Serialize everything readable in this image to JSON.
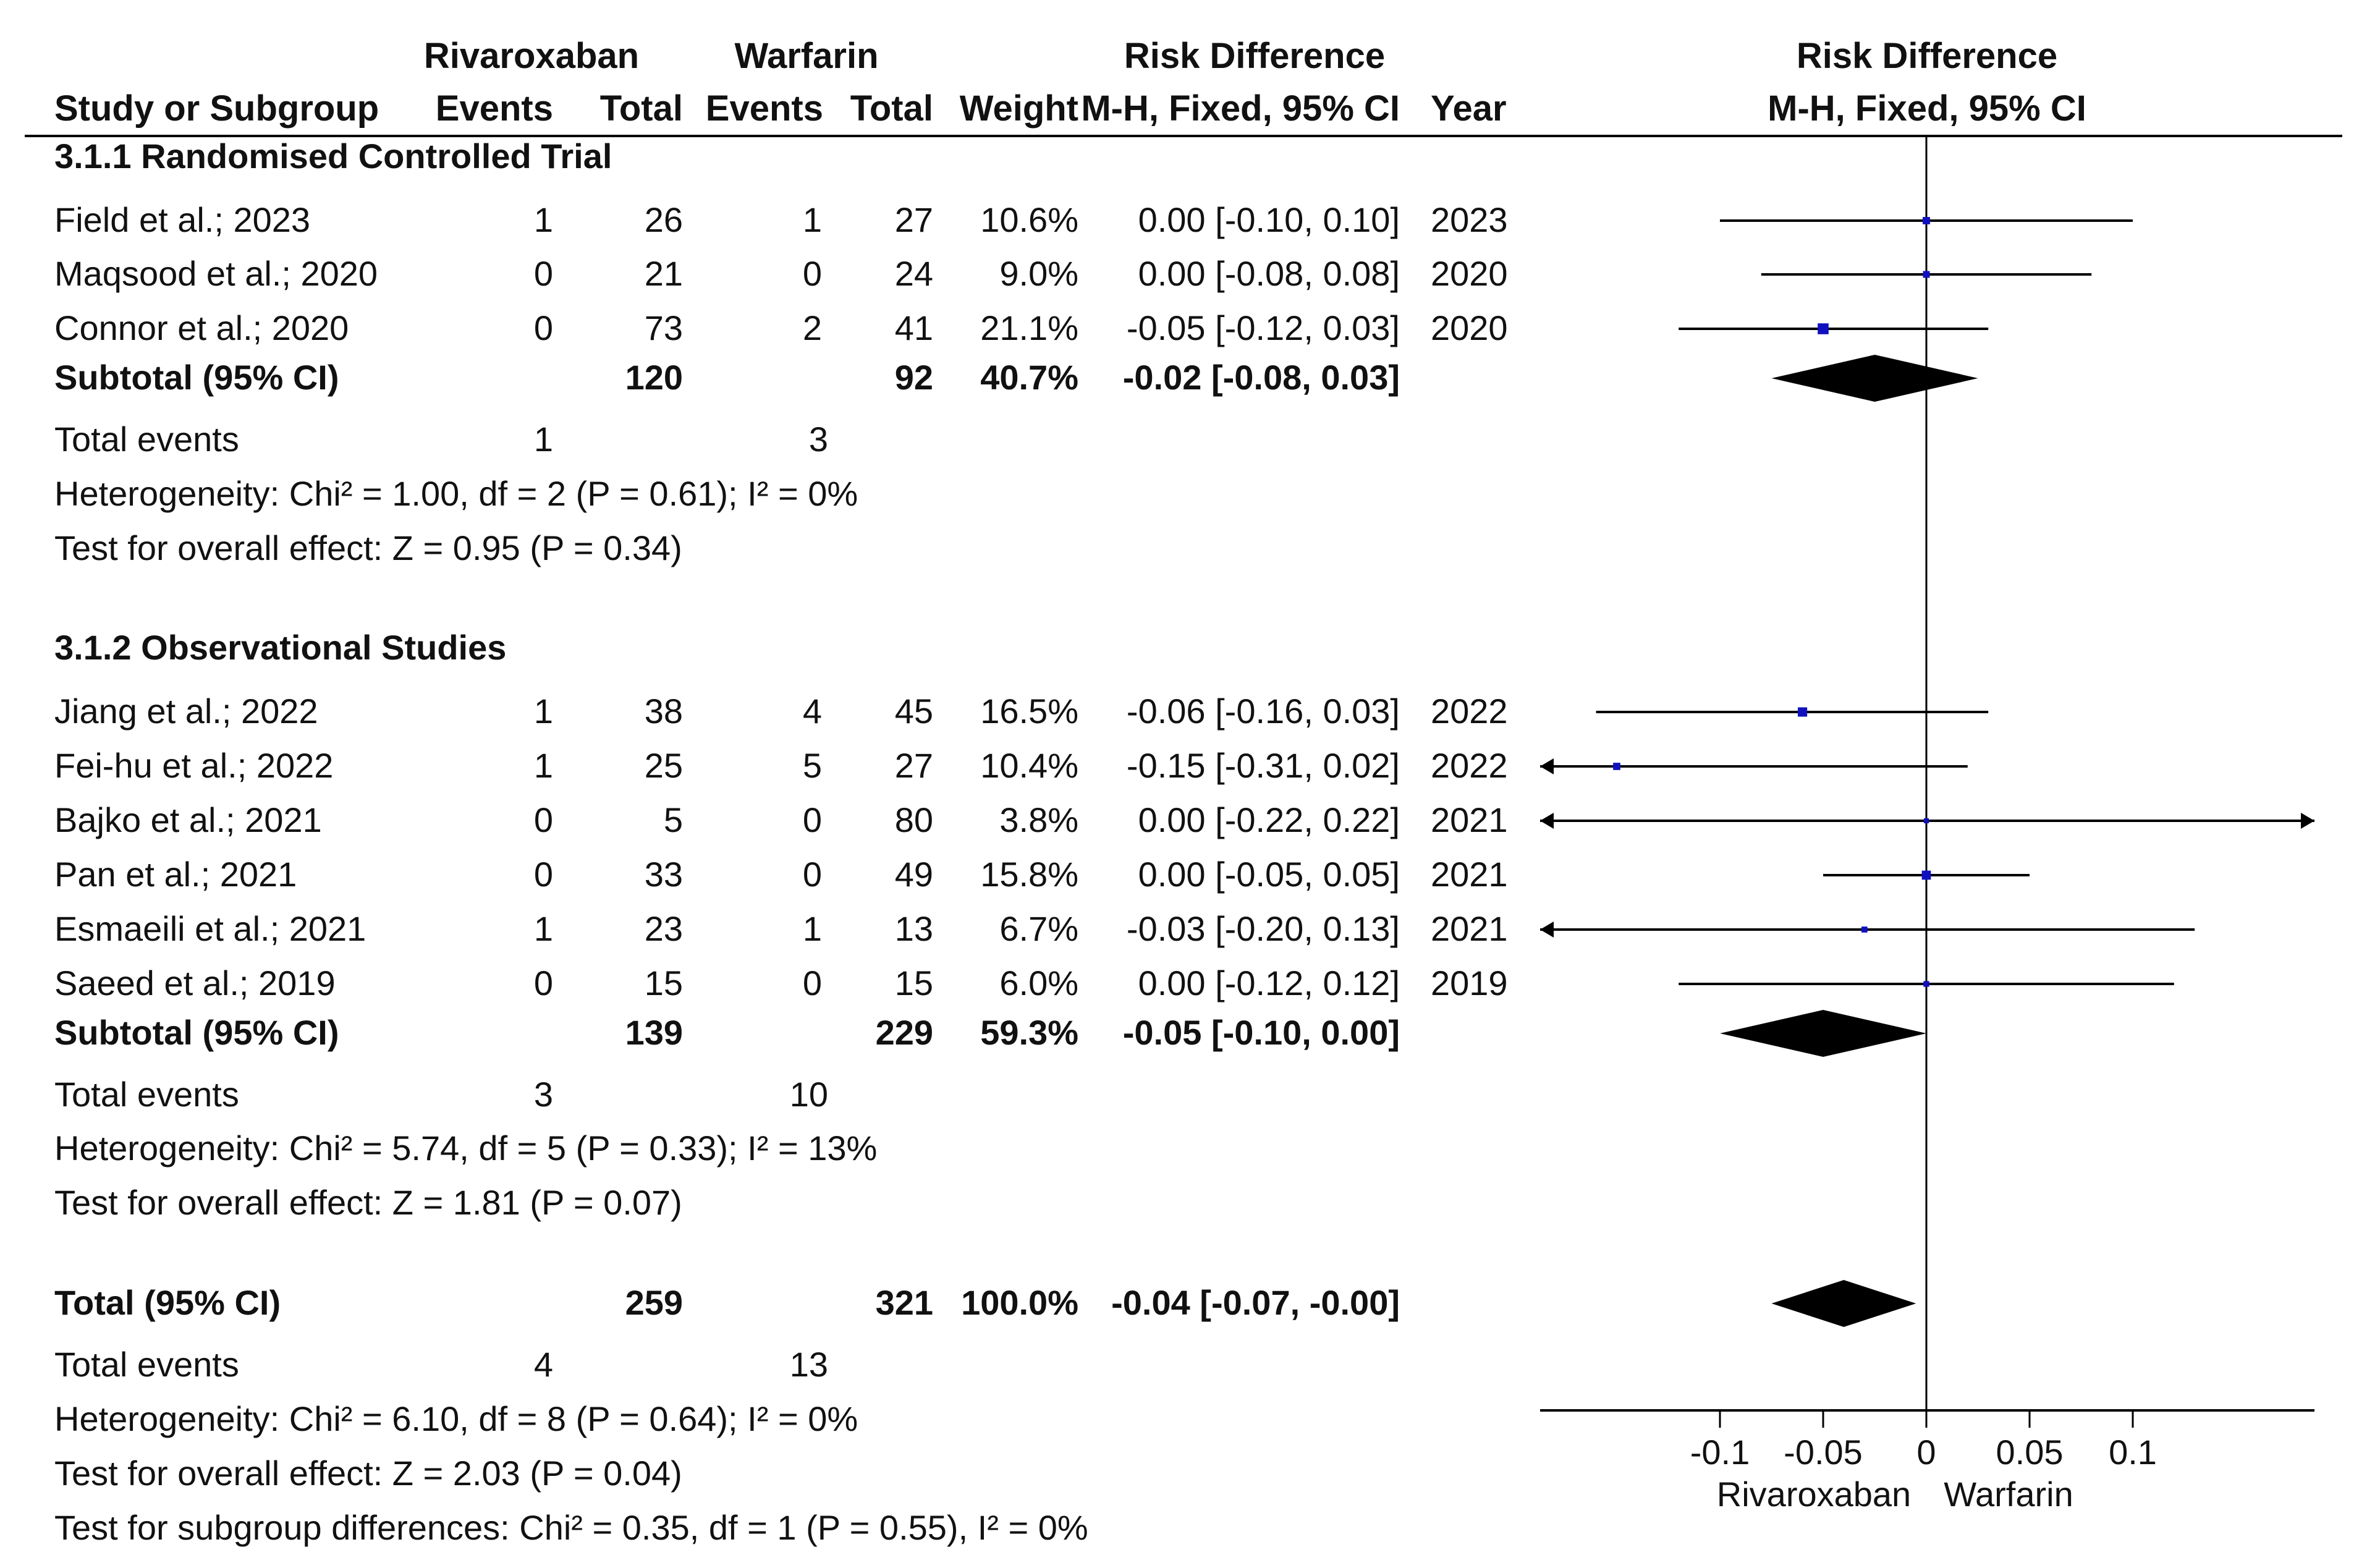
{
  "chart_data": {
    "type": "forest",
    "title": "Risk Difference",
    "headers": {
      "group1": "Rivaroxaban",
      "group2": "Warfarin",
      "effect_group": "Risk Difference",
      "study": "Study or Subgroup",
      "events": "Events",
      "total": "Total",
      "weight": "Weight",
      "effect_method": "M-H, Fixed, 95% CI",
      "year": "Year",
      "plot_title": "Risk Difference",
      "plot_method": "M-H, Fixed, 95% CI"
    },
    "subgroups": [
      {
        "title": "3.1.1 Randomised Controlled Trial",
        "studies": [
          {
            "name": "Field et al.; 2023",
            "e1": "1",
            "t1": "26",
            "e2": "1",
            "t2": "27",
            "weight": "10.6%",
            "ci_text": "0.00 [-0.10, 0.10]",
            "year": "2023",
            "rd": 0.0,
            "lo": -0.1,
            "hi": 0.1,
            "w": 10.6
          },
          {
            "name": "Maqsood et al.; 2020",
            "e1": "0",
            "t1": "21",
            "e2": "0",
            "t2": "24",
            "weight": "9.0%",
            "ci_text": "0.00 [-0.08, 0.08]",
            "year": "2020",
            "rd": 0.0,
            "lo": -0.08,
            "hi": 0.08,
            "w": 9.0
          },
          {
            "name": "Connor et al.; 2020",
            "e1": "0",
            "t1": "73",
            "e2": "2",
            "t2": "41",
            "weight": "21.1%",
            "ci_text": "-0.05 [-0.12, 0.03]",
            "year": "2020",
            "rd": -0.05,
            "lo": -0.12,
            "hi": 0.03,
            "w": 21.1
          }
        ],
        "subtotal": {
          "label": "Subtotal (95% CI)",
          "t1": "120",
          "t2": "92",
          "weight": "40.7%",
          "ci_text": "-0.02 [-0.08, 0.03]",
          "rd": -0.025,
          "lo": -0.075,
          "hi": 0.025
        },
        "total_events": {
          "label": "Total events",
          "e1": "1",
          "e2": "3"
        },
        "heterogeneity": "Heterogeneity: Chi² = 1.00, df = 2 (P = 0.61); I² = 0%",
        "overall": "Test for overall effect: Z = 0.95 (P = 0.34)"
      },
      {
        "title": "3.1.2 Observational Studies",
        "studies": [
          {
            "name": "Jiang et al.; 2022",
            "e1": "1",
            "t1": "38",
            "e2": "4",
            "t2": "45",
            "weight": "16.5%",
            "ci_text": "-0.06 [-0.16, 0.03]",
            "year": "2022",
            "rd": -0.06,
            "lo": -0.16,
            "hi": 0.03,
            "w": 16.5
          },
          {
            "name": "Fei-hu et al.; 2022",
            "e1": "1",
            "t1": "25",
            "e2": "5",
            "t2": "27",
            "weight": "10.4%",
            "ci_text": "-0.15 [-0.31, 0.02]",
            "year": "2022",
            "rd": -0.15,
            "lo": -0.31,
            "hi": 0.02,
            "w": 10.4
          },
          {
            "name": "Bajko et al.; 2021",
            "e1": "0",
            "t1": "5",
            "e2": "0",
            "t2": "80",
            "weight": "3.8%",
            "ci_text": "0.00 [-0.22, 0.22]",
            "year": "2021",
            "rd": 0.0,
            "lo": -0.22,
            "hi": 0.22,
            "w": 3.8
          },
          {
            "name": "Pan et al.; 2021",
            "e1": "0",
            "t1": "33",
            "e2": "0",
            "t2": "49",
            "weight": "15.8%",
            "ci_text": "0.00 [-0.05, 0.05]",
            "year": "2021",
            "rd": 0.0,
            "lo": -0.05,
            "hi": 0.05,
            "w": 15.8
          },
          {
            "name": "Esmaeili et al.; 2021",
            "e1": "1",
            "t1": "23",
            "e2": "1",
            "t2": "13",
            "weight": "6.7%",
            "ci_text": "-0.03 [-0.20, 0.13]",
            "year": "2021",
            "rd": -0.03,
            "lo": -0.2,
            "hi": 0.13,
            "w": 6.7
          },
          {
            "name": "Saeed et al.; 2019",
            "e1": "0",
            "t1": "15",
            "e2": "0",
            "t2": "15",
            "weight": "6.0%",
            "ci_text": "0.00 [-0.12, 0.12]",
            "year": "2019",
            "rd": 0.0,
            "lo": -0.12,
            "hi": 0.12,
            "w": 6.0
          }
        ],
        "subtotal": {
          "label": "Subtotal (95% CI)",
          "t1": "139",
          "t2": "229",
          "weight": "59.3%",
          "ci_text": "-0.05 [-0.10, 0.00]",
          "rd": -0.05,
          "lo": -0.1,
          "hi": 0.0
        },
        "total_events": {
          "label": "Total events",
          "e1": "3",
          "e2": "10"
        },
        "heterogeneity": "Heterogeneity: Chi² = 5.74, df = 5 (P = 0.33); I² = 13%",
        "overall": "Test for overall effect: Z = 1.81 (P = 0.07)"
      }
    ],
    "total": {
      "label": "Total (95% CI)",
      "t1": "259",
      "t2": "321",
      "weight": "100.0%",
      "ci_text": "-0.04 [-0.07, -0.00]",
      "rd": -0.04,
      "lo": -0.075,
      "hi": -0.005
    },
    "total_events": {
      "label": "Total events",
      "e1": "4",
      "e2": "13"
    },
    "heterogeneity": "Heterogeneity: Chi² = 6.10, df = 8 (P = 0.64); I² = 0%",
    "overall": "Test for overall effect: Z = 2.03 (P = 0.04)",
    "subgroup_diff": "Test for subgroup differences: Chi² = 0.35, df = 1 (P = 0.55), I² = 0%",
    "axis": {
      "xlim": [
        -0.19,
        0.19
      ],
      "ticks": [
        -0.1,
        -0.05,
        0,
        0.05,
        0.1
      ],
      "tick_labels": [
        "-0.1",
        "-0.05",
        "0",
        "0.05",
        "0.1"
      ],
      "favours_left": "Rivaroxaban",
      "favours_right": "Warfarin"
    },
    "colors": {
      "marker": "#1010c0",
      "line": "#000000",
      "text": "#111111"
    }
  }
}
